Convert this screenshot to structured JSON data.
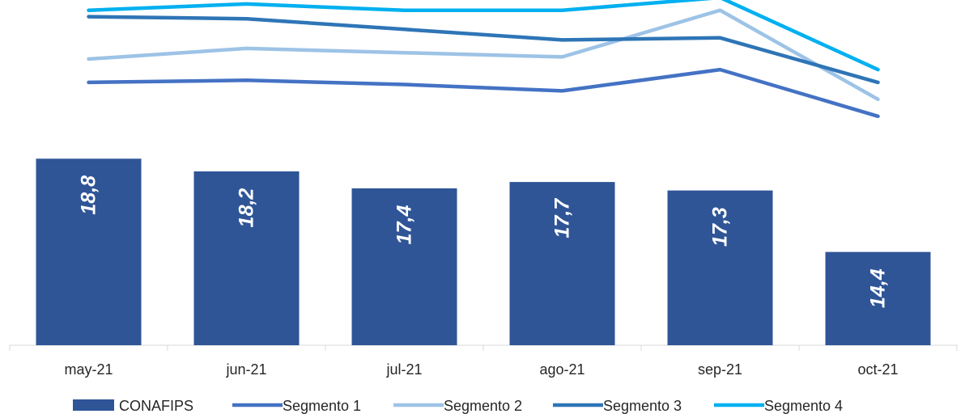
{
  "chart_data": {
    "type": "bar",
    "categories": [
      "may-21",
      "jun-21",
      "jul-21",
      "ago-21",
      "sep-21",
      "oct-21"
    ],
    "series": [
      {
        "name": "CONAFIPS",
        "type": "bar",
        "color": "#2F5597",
        "values": [
          18.8,
          18.2,
          17.4,
          17.7,
          17.3,
          14.4
        ]
      },
      {
        "name": "Segmento 1",
        "type": "line",
        "color": "#4472C4",
        "values": [
          22.4,
          22.5,
          22.3,
          22.0,
          23.0,
          20.8
        ]
      },
      {
        "name": "Segmento 2",
        "type": "line",
        "color": "#9DC3E6",
        "values": [
          23.5,
          24.0,
          23.8,
          23.6,
          25.8,
          21.6
        ]
      },
      {
        "name": "Segmento 3",
        "type": "line",
        "color": "#2E75B6",
        "values": [
          25.5,
          25.4,
          24.9,
          24.4,
          24.5,
          22.4
        ]
      },
      {
        "name": "Segmento 4",
        "type": "line",
        "color": "#00B0F0",
        "values": [
          25.8,
          26.1,
          25.8,
          25.8,
          26.4,
          23.0
        ]
      }
    ],
    "data_labels": [
      "18,8",
      "18,2",
      "17,4",
      "17,7",
      "17,3",
      "14,4"
    ],
    "ylim": [
      10,
      27
    ],
    "y_axis_visible": false,
    "grid": false,
    "legend_position": "bottom",
    "title": "",
    "xlabel": "",
    "ylabel": ""
  }
}
